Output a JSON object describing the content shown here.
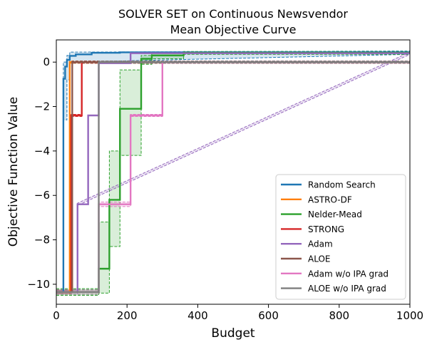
{
  "chart_data": {
    "type": "line",
    "title": "SOLVER SET on Continuous Newsvendor",
    "subtitle": "Mean Objective Curve",
    "xlabel": "Budget",
    "ylabel": "Objective Function Value",
    "xlim": [
      0,
      1000
    ],
    "ylim": [
      -10.9,
      1.0
    ],
    "xticks": [
      "0",
      "200",
      "400",
      "600",
      "800",
      "1000"
    ],
    "yticks": [
      "−10",
      "−8",
      "−6",
      "−4",
      "−2",
      "0"
    ],
    "grid": false,
    "legend_position": "lower-right",
    "series": [
      {
        "name": "Random Search",
        "color": "#1f77b4",
        "x": [
          0,
          20,
          20,
          25,
          25,
          30,
          30,
          38,
          38,
          55,
          55,
          100,
          100,
          180,
          180,
          1000
        ],
        "y": [
          -10.35,
          -10.35,
          -0.75,
          -0.75,
          -0.2,
          -0.2,
          0.1,
          0.1,
          0.28,
          0.28,
          0.35,
          0.35,
          0.42,
          0.42,
          0.44,
          0.44
        ],
        "band_x": [
          0,
          20,
          20,
          30,
          30,
          38,
          38,
          1000
        ],
        "band_low": [
          -10.45,
          -10.45,
          -2.6,
          -2.6,
          -0.8,
          -0.8,
          0.0,
          0.35
        ],
        "band_high": [
          -10.25,
          -10.25,
          0.0,
          0.0,
          0.3,
          0.3,
          0.45,
          0.5
        ]
      },
      {
        "name": "ASTRO-DF",
        "color": "#ff7f0e",
        "x": [
          0,
          38,
          38,
          1000
        ],
        "y": [
          -10.35,
          -10.35,
          0.0,
          0.0
        ],
        "band_x": [
          0,
          38,
          38,
          1000
        ],
        "band_low": [
          -10.45,
          -10.45,
          -0.05,
          -0.05
        ],
        "band_high": [
          -10.25,
          -10.25,
          0.05,
          0.05
        ]
      },
      {
        "name": "Nelder-Mead",
        "color": "#2ca02c",
        "x": [
          0,
          120,
          120,
          150,
          150,
          180,
          180,
          240,
          240,
          270,
          270,
          360,
          360,
          1000
        ],
        "y": [
          -10.35,
          -10.35,
          -9.3,
          -9.3,
          -6.2,
          -6.2,
          -2.1,
          -2.1,
          0.15,
          0.15,
          0.3,
          0.3,
          0.42,
          0.42
        ],
        "band_x": [
          0,
          120,
          120,
          150,
          150,
          180,
          180,
          240,
          240,
          270,
          270,
          360,
          360,
          1000
        ],
        "band_low": [
          -10.5,
          -10.5,
          -10.4,
          -10.4,
          -8.3,
          -8.3,
          -4.2,
          -4.2,
          -0.1,
          -0.1,
          0.15,
          0.15,
          0.35,
          0.35
        ],
        "band_high": [
          -10.2,
          -10.2,
          -7.2,
          -7.2,
          -4.0,
          -4.0,
          -0.35,
          -0.35,
          0.3,
          0.3,
          0.45,
          0.45,
          0.48,
          0.48
        ]
      },
      {
        "name": "STRONG",
        "color": "#d62728",
        "x": [
          0,
          42,
          42,
          72,
          72,
          1000
        ],
        "y": [
          -10.35,
          -10.35,
          -2.4,
          -2.4,
          0.0,
          0.0
        ],
        "band_x": [
          0,
          42,
          42,
          72,
          72,
          1000
        ],
        "band_low": [
          -10.45,
          -10.45,
          -2.45,
          -2.45,
          -0.05,
          -0.05
        ],
        "band_high": [
          -10.25,
          -10.25,
          -2.35,
          -2.35,
          0.05,
          0.05
        ]
      },
      {
        "name": "Adam",
        "color": "#9467bd",
        "x": [
          0,
          60,
          60,
          90,
          90,
          120,
          120,
          210,
          210,
          1000
        ],
        "y": [
          -10.35,
          -10.35,
          -6.4,
          -6.4,
          -2.4,
          -2.4,
          -0.05,
          -0.05,
          0.4,
          0.4
        ],
        "band_x": [
          0,
          60,
          60,
          1000
        ],
        "band_low": [
          -10.45,
          -10.45,
          -6.45,
          0.35
        ],
        "band_high": [
          -10.25,
          -10.25,
          -6.35,
          0.45
        ]
      },
      {
        "name": "ALOE",
        "color": "#8c564b",
        "x": [
          0,
          45,
          45,
          1000
        ],
        "y": [
          -10.35,
          -10.35,
          0.0,
          0.0
        ],
        "band_x": [
          0,
          45,
          45,
          1000
        ],
        "band_low": [
          -10.45,
          -10.45,
          -0.05,
          -0.05
        ],
        "band_high": [
          -10.25,
          -10.25,
          0.05,
          0.05
        ]
      },
      {
        "name": "Adam w/o IPA grad",
        "color": "#e377c2",
        "x": [
          0,
          120,
          120,
          210,
          210,
          300,
          300,
          1000
        ],
        "y": [
          -10.35,
          -10.35,
          -6.4,
          -6.4,
          -2.4,
          -2.4,
          0.0,
          0.0
        ],
        "band_x": [
          0,
          120,
          120,
          210,
          210,
          300,
          300,
          1000
        ],
        "band_low": [
          -10.45,
          -10.45,
          -6.5,
          -6.5,
          -2.45,
          -2.45,
          -0.05,
          -0.05
        ],
        "band_high": [
          -10.25,
          -10.25,
          -6.3,
          -6.3,
          -2.35,
          -2.35,
          0.05,
          0.05
        ]
      },
      {
        "name": "ALOE w/o IPA grad",
        "color": "#7f7f7f",
        "x": [
          0,
          120,
          120,
          1000
        ],
        "y": [
          -10.35,
          -10.35,
          0.0,
          0.0
        ],
        "band_x": [
          0,
          120,
          120,
          1000
        ],
        "band_low": [
          -10.45,
          -10.45,
          -0.05,
          -0.05
        ],
        "band_high": [
          -10.25,
          -10.25,
          0.05,
          0.05
        ]
      }
    ]
  }
}
